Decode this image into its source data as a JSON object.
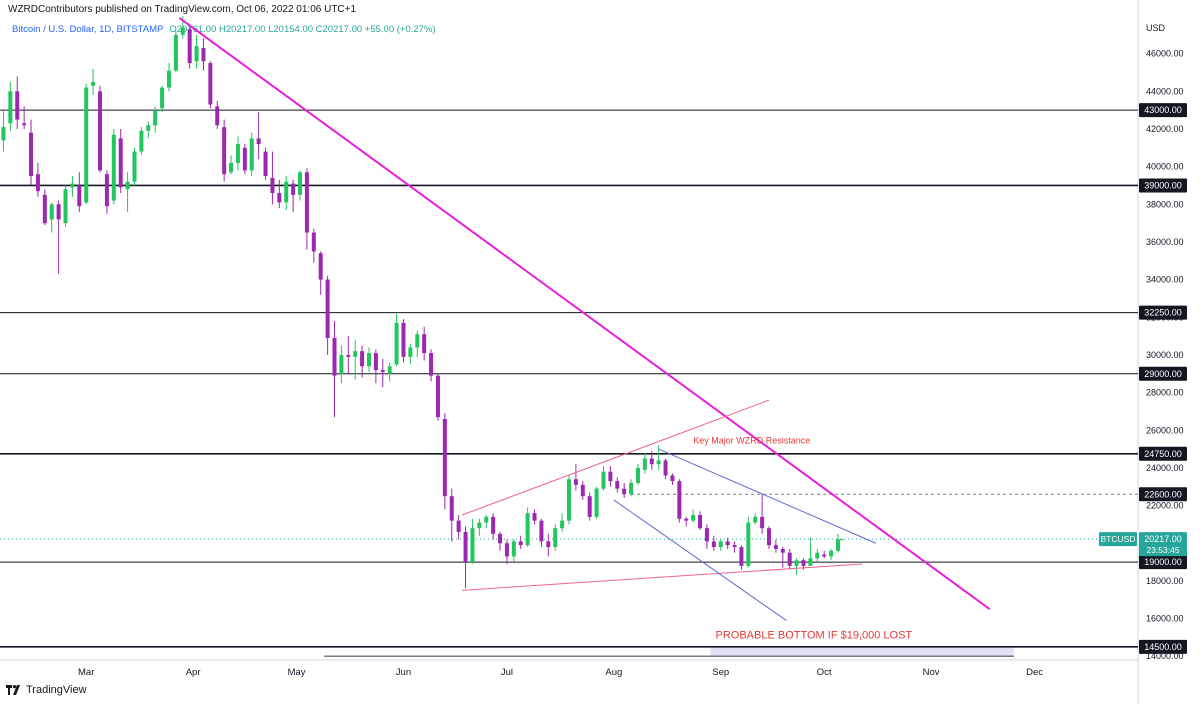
{
  "publisher_line": "WZRDContributors published on TradingView.com, Oct 06, 2022 01:06 UTC+1",
  "legend": {
    "symbol": "Bitcoin / U.S. Dollar, 1D, BITSTAMP",
    "ohlc": "O20161.00 H20217.00 L20154.00 C20217.00 +55.00 (+0.27%)"
  },
  "footer": {
    "brand": "TradingView"
  },
  "colors": {
    "up": "#22c55e",
    "down": "#9c27b0",
    "trendline": "#e91edb",
    "channel": "#5b6bd8",
    "wedge_upper": "#f06292",
    "wedge_lower": "#f06292",
    "annotation": "#e53935"
  },
  "chart_data": {
    "type": "candlestick",
    "currency": "USD",
    "x_ticks": [
      "Mar",
      "Apr",
      "May",
      "Jun",
      "Jul",
      "Aug",
      "Sep",
      "Oct",
      "Nov",
      "Dec"
    ],
    "y_ticks": [
      14000,
      16000,
      18000,
      20000,
      22000,
      24000,
      26000,
      28000,
      30000,
      32000,
      34000,
      36000,
      38000,
      40000,
      42000,
      44000,
      46000
    ],
    "ylim": [
      13800,
      48000
    ],
    "x_range": [
      "2022-02-04",
      "2022-12-31"
    ],
    "horizontal_levels": [
      {
        "value": 43000,
        "label": "43000.00",
        "weight": "thin"
      },
      {
        "value": 39000,
        "label": "39000.00",
        "weight": "thick"
      },
      {
        "value": 32250,
        "label": "32250.00",
        "weight": "thin"
      },
      {
        "value": 29000,
        "label": "29000.00",
        "weight": "thin"
      },
      {
        "value": 24750,
        "label": "24750.00",
        "weight": "thick"
      },
      {
        "value": 22600,
        "label": "22600.00",
        "weight": "dashed"
      },
      {
        "value": 19000,
        "label": "19000.00",
        "weight": "thin"
      },
      {
        "value": 14500,
        "label": "14500.00",
        "weight": "thick"
      }
    ],
    "last_price": {
      "symbol": "BTCUSD",
      "value": "20217.00",
      "countdown": "23:53:45",
      "price": 20217
    },
    "annotations": [
      {
        "text": "Key Major WZRD Resistance",
        "x": "2022-09-10",
        "y": 25300
      },
      {
        "text": "PROBABLE BOTTOM IF $19,000 LOST",
        "x": "2022-09-28",
        "y": 14930
      }
    ],
    "probable_bottom_zone": {
      "x_start": "2022-08-29",
      "x_end": "2022-11-25",
      "y_low": 14000,
      "y_high": 14500
    },
    "range_line": {
      "x_start": "2022-05-09",
      "x_end": "2022-11-25",
      "y": 14000
    },
    "lines": [
      {
        "name_key": "trendline",
        "points": [
          [
            "2022-03-28",
            47900
          ],
          [
            "2022-11-18",
            16500
          ]
        ],
        "width": 2
      },
      {
        "name_key": "wedge_upper",
        "points": [
          [
            "2022-06-18",
            21500
          ],
          [
            "2022-09-15",
            27600
          ]
        ],
        "width": 1
      },
      {
        "name_key": "wedge_lower",
        "points": [
          [
            "2022-06-18",
            17500
          ],
          [
            "2022-10-12",
            18900
          ]
        ],
        "width": 1
      },
      {
        "name_key": "channel",
        "points": [
          [
            "2022-08-14",
            25000
          ],
          [
            "2022-10-16",
            20000
          ]
        ],
        "width": 1
      },
      {
        "name_key": "channel",
        "points": [
          [
            "2022-08-01",
            22300
          ],
          [
            "2022-09-20",
            15900
          ]
        ],
        "width": 1
      }
    ],
    "candles_key": "date,open,high,low,close",
    "candles": [
      [
        "2022-02-05",
        41400,
        43000,
        40800,
        42100
      ],
      [
        "2022-02-07",
        42300,
        44500,
        41900,
        44000
      ],
      [
        "2022-02-09",
        44000,
        44800,
        42000,
        42500
      ],
      [
        "2022-02-11",
        42300,
        43200,
        42000,
        42200
      ],
      [
        "2022-02-13",
        41800,
        42500,
        39000,
        39500
      ],
      [
        "2022-02-15",
        39600,
        40200,
        38400,
        38700
      ],
      [
        "2022-02-17",
        38500,
        38800,
        36900,
        37000
      ],
      [
        "2022-02-19",
        37200,
        38100,
        36500,
        38000
      ],
      [
        "2022-02-21",
        38000,
        38200,
        34300,
        37200
      ],
      [
        "2022-02-23",
        37000,
        39000,
        36800,
        38800
      ],
      [
        "2022-02-25",
        38900,
        39500,
        38400,
        39100
      ],
      [
        "2022-02-27",
        39000,
        39700,
        37600,
        37900
      ],
      [
        "2022-03-01",
        38100,
        44400,
        38000,
        44200
      ],
      [
        "2022-03-03",
        44300,
        45200,
        43800,
        44500
      ],
      [
        "2022-03-05",
        44000,
        44300,
        39700,
        39800
      ],
      [
        "2022-03-07",
        39600,
        39800,
        37500,
        37900
      ],
      [
        "2022-03-09",
        38200,
        42000,
        38000,
        41700
      ],
      [
        "2022-03-11",
        41500,
        42000,
        38600,
        38900
      ],
      [
        "2022-03-13",
        38800,
        39700,
        37600,
        39200
      ],
      [
        "2022-03-15",
        39200,
        41000,
        39000,
        40800
      ],
      [
        "2022-03-17",
        40800,
        42100,
        40600,
        41900
      ],
      [
        "2022-03-19",
        41900,
        42400,
        41500,
        42200
      ],
      [
        "2022-03-21",
        42200,
        43200,
        41800,
        43000
      ],
      [
        "2022-03-23",
        43100,
        44300,
        42900,
        44200
      ],
      [
        "2022-03-25",
        44200,
        45500,
        44000,
        45100
      ],
      [
        "2022-03-27",
        45100,
        47200,
        45000,
        47000
      ],
      [
        "2022-03-29",
        47000,
        48000,
        46800,
        47400
      ],
      [
        "2022-03-31",
        47300,
        47500,
        45200,
        45500
      ],
      [
        "2022-04-02",
        45600,
        47000,
        45200,
        46400
      ],
      [
        "2022-04-04",
        46300,
        46800,
        45100,
        45600
      ],
      [
        "2022-04-06",
        45500,
        45600,
        43100,
        43300
      ],
      [
        "2022-04-08",
        43200,
        43500,
        42000,
        42200
      ],
      [
        "2022-04-10",
        42100,
        42500,
        39200,
        39600
      ],
      [
        "2022-04-12",
        39700,
        40600,
        39600,
        40200
      ],
      [
        "2022-04-14",
        40200,
        41600,
        39800,
        41200
      ],
      [
        "2022-04-16",
        41000,
        41200,
        39600,
        39800
      ],
      [
        "2022-04-18",
        39800,
        41800,
        39500,
        41500
      ],
      [
        "2022-04-20",
        41500,
        42900,
        40400,
        41200
      ],
      [
        "2022-04-22",
        40800,
        41000,
        39300,
        39500
      ],
      [
        "2022-04-24",
        39400,
        40800,
        38000,
        38600
      ],
      [
        "2022-04-26",
        38600,
        39300,
        37800,
        38100
      ],
      [
        "2022-04-28",
        38100,
        39500,
        37700,
        39200
      ],
      [
        "2022-04-30",
        39100,
        39300,
        37600,
        38500
      ],
      [
        "2022-05-02",
        38500,
        39800,
        38200,
        39700
      ],
      [
        "2022-05-04",
        39700,
        39900,
        35600,
        36500
      ],
      [
        "2022-05-06",
        36500,
        36700,
        34900,
        35500
      ],
      [
        "2022-05-08",
        35400,
        35500,
        33200,
        34000
      ],
      [
        "2022-05-10",
        34000,
        34200,
        30000,
        30900
      ],
      [
        "2022-05-12",
        30900,
        31800,
        26700,
        28900
      ],
      [
        "2022-05-14",
        29000,
        30500,
        28500,
        30000
      ],
      [
        "2022-05-16",
        30000,
        31000,
        29000,
        29900
      ],
      [
        "2022-05-18",
        29900,
        30800,
        28700,
        30200
      ],
      [
        "2022-05-20",
        30200,
        30500,
        28800,
        29400
      ],
      [
        "2022-05-22",
        29400,
        30400,
        29100,
        30100
      ],
      [
        "2022-05-24",
        30100,
        30300,
        28500,
        29200
      ],
      [
        "2022-05-26",
        29200,
        29800,
        28300,
        29100
      ],
      [
        "2022-05-28",
        29000,
        29600,
        28600,
        29400
      ],
      [
        "2022-05-30",
        29500,
        32200,
        29400,
        31700
      ],
      [
        "2022-06-01",
        31700,
        31900,
        29600,
        29900
      ],
      [
        "2022-06-03",
        29900,
        30600,
        29500,
        30400
      ],
      [
        "2022-06-05",
        30400,
        31300,
        29900,
        31100
      ],
      [
        "2022-06-07",
        31100,
        31500,
        29700,
        30100
      ],
      [
        "2022-06-09",
        30100,
        30300,
        28600,
        28900
      ],
      [
        "2022-06-11",
        28900,
        29000,
        26500,
        26700
      ],
      [
        "2022-06-13",
        26600,
        26900,
        21800,
        22500
      ],
      [
        "2022-06-15",
        22500,
        22900,
        20100,
        21200
      ],
      [
        "2022-06-17",
        21200,
        21500,
        20200,
        20600
      ],
      [
        "2022-06-19",
        20600,
        20900,
        17600,
        19000
      ],
      [
        "2022-06-21",
        19000,
        21300,
        18900,
        20800
      ],
      [
        "2022-06-23",
        20800,
        21300,
        20400,
        21100
      ],
      [
        "2022-06-25",
        21100,
        21500,
        20800,
        21400
      ],
      [
        "2022-06-27",
        21400,
        21600,
        20200,
        20500
      ],
      [
        "2022-06-29",
        20500,
        20600,
        19600,
        20000
      ],
      [
        "2022-07-01",
        20000,
        20200,
        18900,
        19300
      ],
      [
        "2022-07-03",
        19300,
        20200,
        19000,
        20100
      ],
      [
        "2022-07-05",
        20100,
        20400,
        19700,
        19900
      ],
      [
        "2022-07-07",
        19900,
        21900,
        19800,
        21600
      ],
      [
        "2022-07-09",
        21600,
        21800,
        21000,
        21200
      ],
      [
        "2022-07-11",
        21200,
        21300,
        19800,
        20100
      ],
      [
        "2022-07-13",
        20100,
        20500,
        19300,
        19800
      ],
      [
        "2022-07-15",
        19800,
        21000,
        19600,
        20800
      ],
      [
        "2022-07-17",
        20800,
        21600,
        20600,
        21200
      ],
      [
        "2022-07-19",
        21200,
        23600,
        21000,
        23400
      ],
      [
        "2022-07-21",
        23400,
        24200,
        22800,
        23100
      ],
      [
        "2022-07-23",
        23100,
        23300,
        22300,
        22500
      ],
      [
        "2022-07-25",
        22500,
        22700,
        21200,
        21400
      ],
      [
        "2022-07-27",
        21400,
        23000,
        21300,
        22900
      ],
      [
        "2022-07-29",
        22900,
        24100,
        22800,
        23800
      ],
      [
        "2022-07-31",
        23800,
        24100,
        23000,
        23300
      ],
      [
        "2022-08-02",
        23300,
        23500,
        22700,
        22900
      ],
      [
        "2022-08-04",
        22900,
        23200,
        22400,
        22600
      ],
      [
        "2022-08-06",
        22600,
        23400,
        22500,
        23200
      ],
      [
        "2022-08-08",
        23200,
        24200,
        23100,
        24000
      ],
      [
        "2022-08-10",
        23900,
        24800,
        23700,
        24500
      ],
      [
        "2022-08-12",
        24500,
        24900,
        23900,
        24200
      ],
      [
        "2022-08-14",
        24200,
        25200,
        23900,
        24400
      ],
      [
        "2022-08-16",
        24400,
        24500,
        23400,
        23600
      ],
      [
        "2022-08-18",
        23600,
        23700,
        23100,
        23300
      ],
      [
        "2022-08-20",
        23300,
        23400,
        21100,
        21300
      ],
      [
        "2022-08-22",
        21300,
        21400,
        20900,
        21200
      ],
      [
        "2022-08-24",
        21200,
        21800,
        21100,
        21500
      ],
      [
        "2022-08-26",
        21500,
        21700,
        20700,
        20800
      ],
      [
        "2022-08-28",
        20800,
        21000,
        19700,
        20100
      ],
      [
        "2022-08-30",
        20100,
        20400,
        19600,
        19800
      ],
      [
        "2022-09-01",
        19800,
        20200,
        19600,
        20100
      ],
      [
        "2022-09-03",
        20100,
        20300,
        19700,
        19900
      ],
      [
        "2022-09-05",
        19900,
        20100,
        19500,
        19800
      ],
      [
        "2022-09-07",
        19800,
        19900,
        18600,
        18800
      ],
      [
        "2022-09-09",
        18800,
        21400,
        18700,
        21100
      ],
      [
        "2022-09-11",
        21100,
        21600,
        21000,
        21400
      ],
      [
        "2022-09-13",
        21400,
        22600,
        20500,
        20800
      ],
      [
        "2022-09-15",
        20800,
        20900,
        19700,
        19900
      ],
      [
        "2022-09-17",
        19900,
        20200,
        19500,
        19700
      ],
      [
        "2022-09-19",
        19700,
        19800,
        18700,
        19500
      ],
      [
        "2022-09-21",
        19500,
        19700,
        18600,
        18800
      ],
      [
        "2022-09-23",
        18800,
        19200,
        18300,
        19100
      ],
      [
        "2022-09-25",
        19100,
        19200,
        18600,
        18800
      ],
      [
        "2022-09-27",
        18800,
        20300,
        18800,
        19200
      ],
      [
        "2022-09-29",
        19200,
        19700,
        19000,
        19500
      ],
      [
        "2022-10-01",
        19400,
        19600,
        19200,
        19300
      ],
      [
        "2022-10-03",
        19300,
        19700,
        19100,
        19600
      ],
      [
        "2022-10-05",
        19600,
        20500,
        19500,
        20200
      ],
      [
        "2022-10-06",
        20161,
        20217,
        20154,
        20217
      ]
    ]
  }
}
